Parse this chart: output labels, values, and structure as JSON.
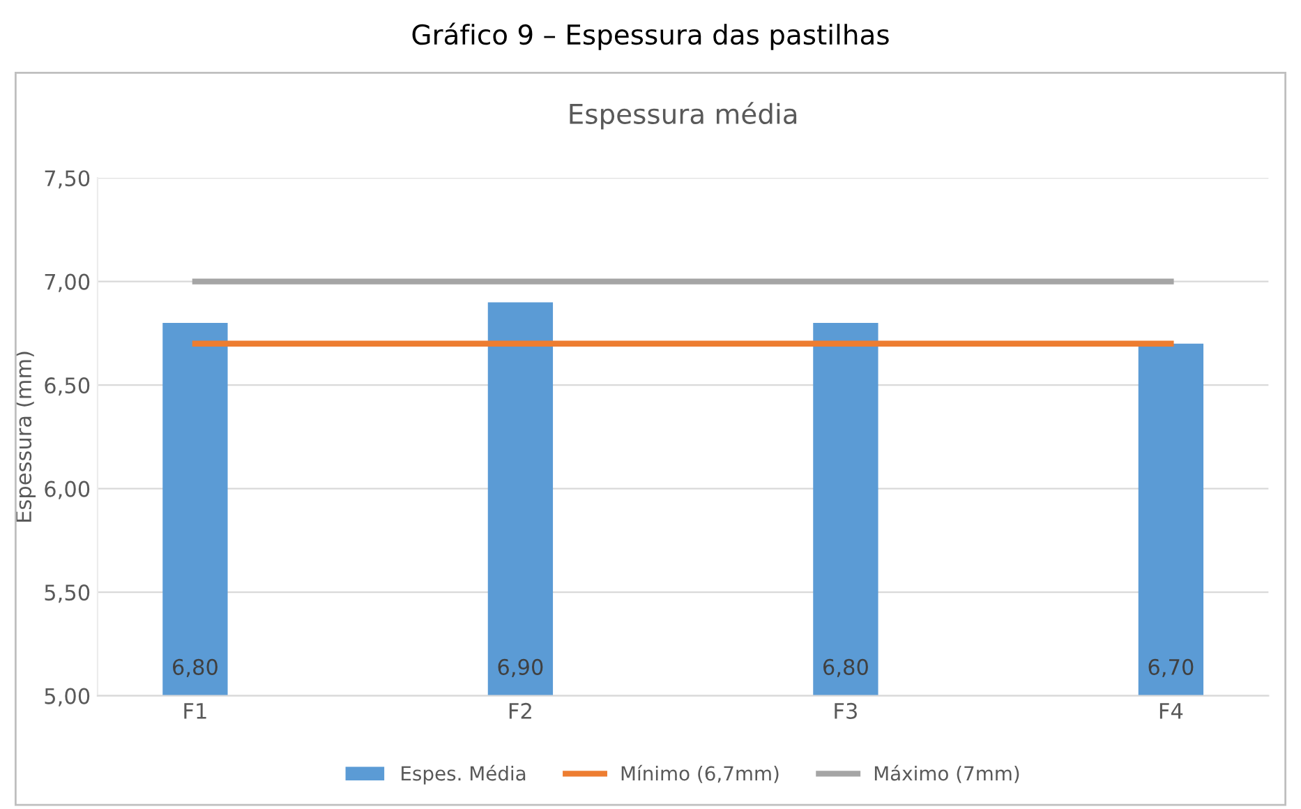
{
  "chart_data": {
    "type": "bar",
    "title": "Gráfico 9 – Espessura das pastilhas",
    "subtitle": "Espessura média",
    "ylabel": "Espessura (mm)",
    "categories": [
      "F1",
      "F2",
      "F3",
      "F4"
    ],
    "series": [
      {
        "name": "Espes. Média",
        "color": "#5b9bd5",
        "values": [
          6.8,
          6.9,
          6.8,
          6.7
        ],
        "value_labels": [
          "6,80",
          "6,90",
          "6,80",
          "6,70"
        ]
      },
      {
        "name": "Mínimo (6,7mm)",
        "type": "line",
        "color": "#ed7d31",
        "values": [
          6.7,
          6.7,
          6.7,
          6.7
        ]
      },
      {
        "name": "Máximo (7mm)",
        "type": "line",
        "color": "#a5a5a5",
        "values": [
          7.0,
          7.0,
          7.0,
          7.0
        ]
      }
    ],
    "ylim": [
      5,
      7.5
    ],
    "yticks": [
      {
        "value": 5,
        "label": "5,00"
      },
      {
        "value": 5.5,
        "label": "5,50"
      },
      {
        "value": 6,
        "label": "6,00"
      },
      {
        "value": 6.5,
        "label": "6,50"
      },
      {
        "value": 7,
        "label": "7,00"
      },
      {
        "value": 7.5,
        "label": "7,50"
      }
    ],
    "grid": "y",
    "legend": "bottom",
    "marker": "none",
    "line_style": "solid"
  }
}
